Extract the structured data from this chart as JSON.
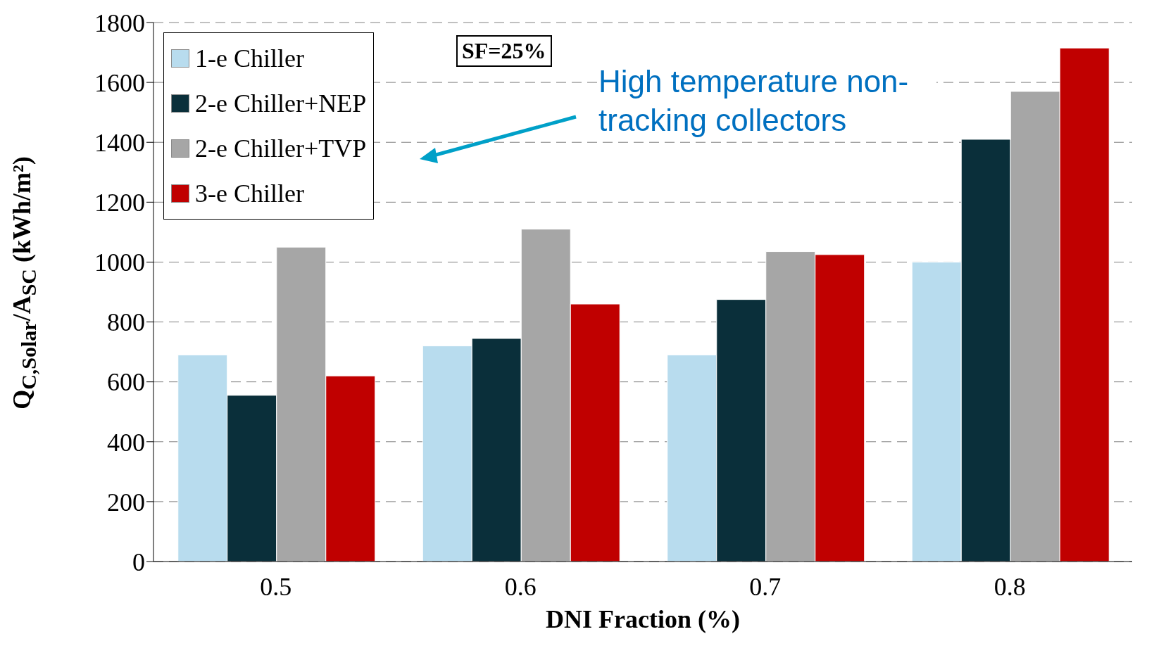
{
  "chart_data": {
    "type": "bar",
    "xlabel": "DNI Fraction (%)",
    "ylabel": "Q$_{C,Solar}$/A$_{SC}$ (kWh/m²)",
    "categories": [
      "0.5",
      "0.6",
      "0.7",
      "0.8"
    ],
    "series": [
      {
        "name": "1-e Chiller",
        "color": "#b8dcee",
        "values": [
          690,
          720,
          690,
          1000
        ]
      },
      {
        "name": "2-e Chiller+NEP",
        "color": "#0a2f3a",
        "values": [
          555,
          745,
          875,
          1410
        ]
      },
      {
        "name": "2-e Chiller+TVP",
        "color": "#a6a6a6",
        "values": [
          1050,
          1110,
          1035,
          1570
        ]
      },
      {
        "name": "3-e Chiller",
        "color": "#c00000",
        "values": [
          620,
          860,
          1025,
          1715
        ]
      }
    ],
    "ylim": [
      0,
      1800
    ],
    "yticks": [
      0,
      200,
      400,
      600,
      800,
      1000,
      1200,
      1400,
      1600,
      1800
    ],
    "grid": "y",
    "legend": "top left",
    "annotations": [
      "SF=25%",
      "High temperature non-tracking collectors"
    ]
  }
}
